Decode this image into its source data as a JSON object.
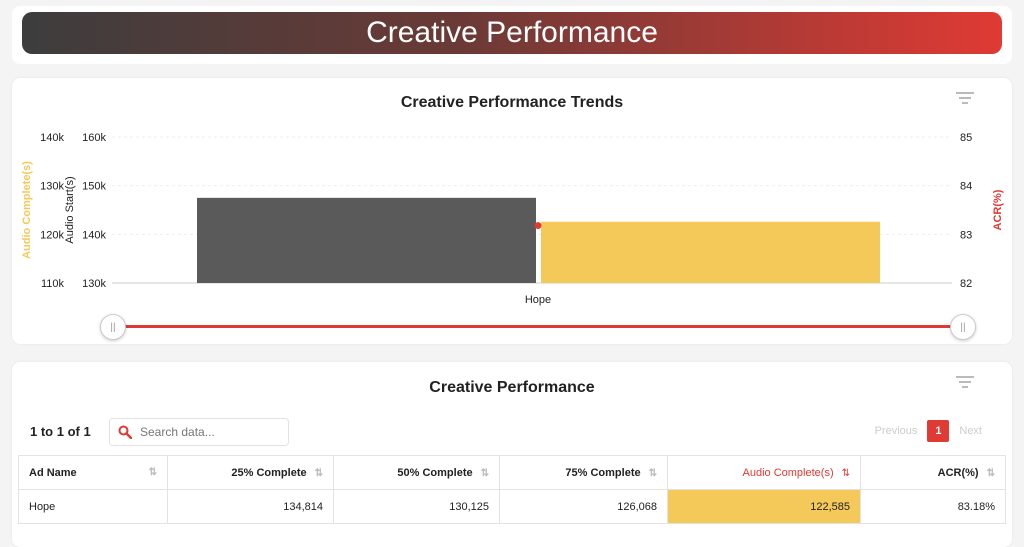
{
  "header": {
    "title": "Creative Performance"
  },
  "trend_card": {
    "title": "Creative Performance Trends",
    "filter_icon": "filter-icon"
  },
  "chart_data": {
    "type": "bar",
    "categories": [
      "Hope"
    ],
    "series": [
      {
        "name": "Audio Start(s)",
        "axis": "Audio Start(s)",
        "values": [
          147500
        ],
        "color": "#5a5a5a"
      },
      {
        "name": "Audio Complete(s)",
        "axis": "Audio Complete(s)",
        "values": [
          122585
        ],
        "color": "#f4c95a"
      },
      {
        "name": "ACR(%)",
        "axis": "ACR(%)",
        "values": [
          83.18
        ],
        "color": "#e03a34",
        "marker": "point"
      }
    ],
    "axes": {
      "left_outer": {
        "label": "Audio Complete(s)",
        "ticks": [
          "140k",
          "130k",
          "120k",
          "110k"
        ],
        "range": [
          110000,
          140000
        ],
        "color": "#f4c95a"
      },
      "left_inner": {
        "label": "Audio Start(s)",
        "ticks": [
          "160k",
          "150k",
          "140k",
          "130k"
        ],
        "range": [
          130000,
          160000
        ],
        "color": "#555"
      },
      "right": {
        "label": "ACR(%)",
        "ticks": [
          "85",
          "84",
          "83",
          "82"
        ],
        "range": [
          82,
          85
        ],
        "color": "#e03a34"
      }
    },
    "grid": true
  },
  "table_card": {
    "title": "Creative Performance",
    "count_text": "1 to 1 of 1",
    "search_placeholder": "Search data...",
    "pager": {
      "previous": "Previous",
      "current": "1",
      "next": "Next"
    },
    "columns": [
      "Ad Name",
      "25% Complete",
      "50% Complete",
      "75% Complete",
      "Audio Complete(s)",
      "ACR(%)"
    ],
    "rows": [
      [
        "Hope",
        "134,814",
        "130,125",
        "126,068",
        "122,585",
        "83.18%"
      ]
    ]
  }
}
